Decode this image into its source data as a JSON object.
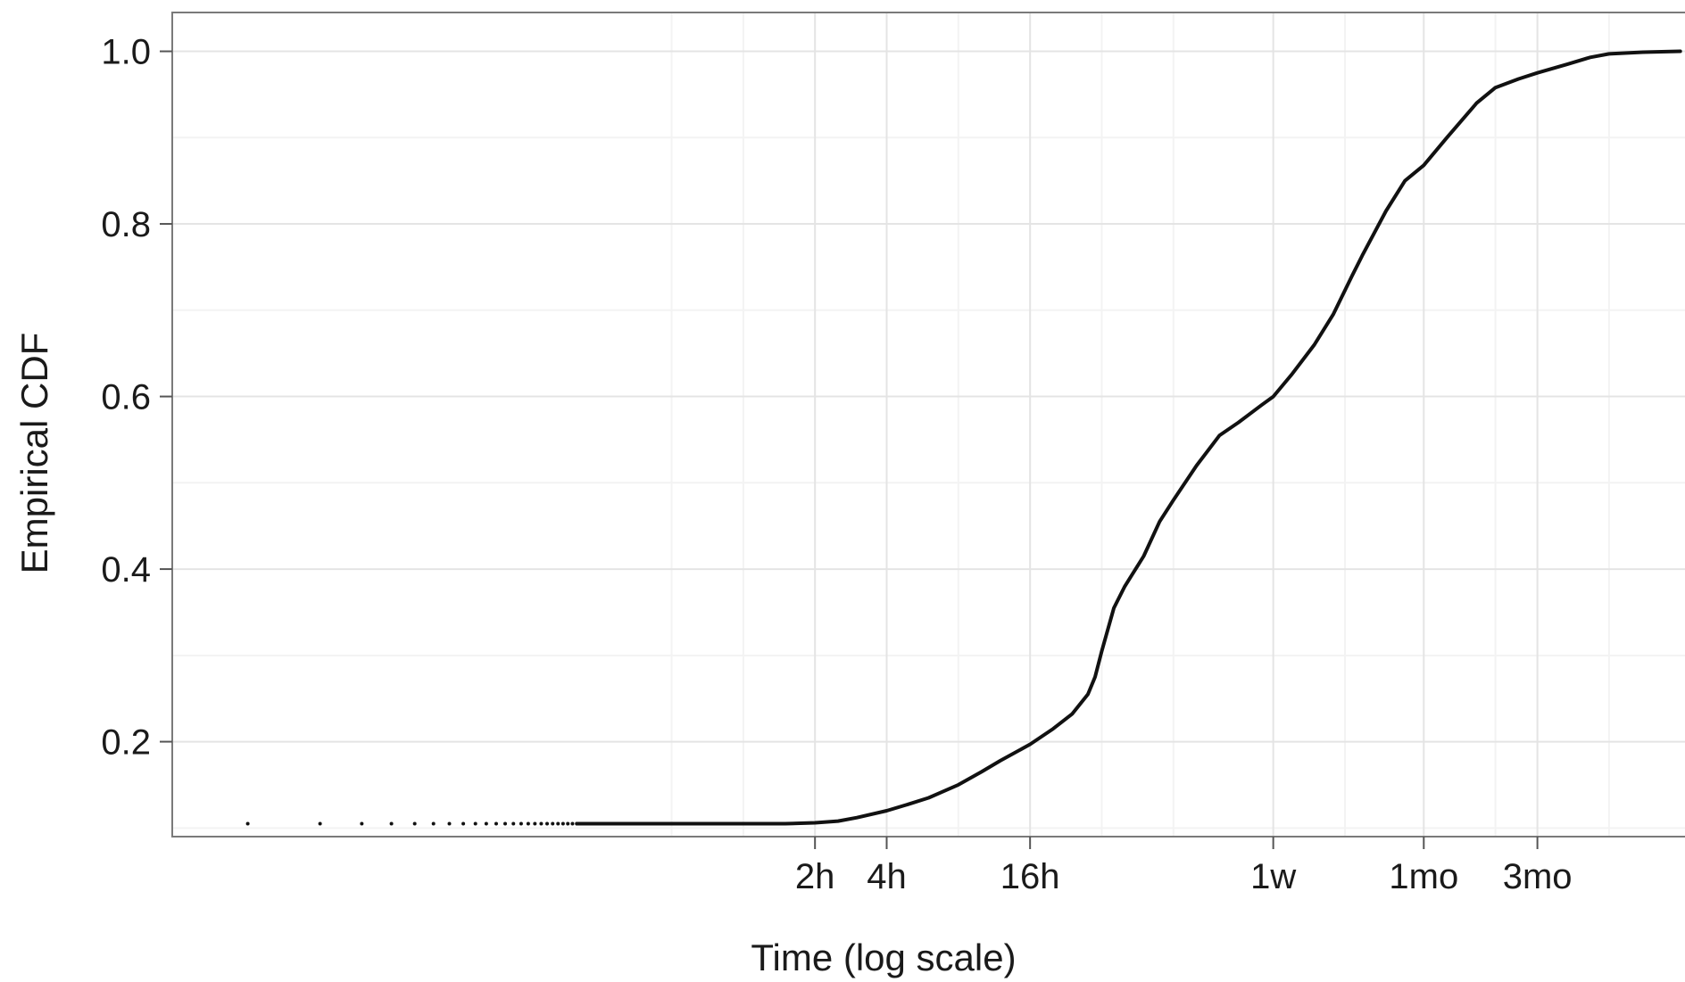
{
  "chart_data": {
    "type": "line",
    "title": "",
    "xlabel": "Time (log scale)",
    "ylabel": "Empirical CDF",
    "x_scale": "log",
    "x_unit": "hours",
    "xlim": [
      0.004,
      9000
    ],
    "ylim": [
      0.09,
      1.045
    ],
    "grid": true,
    "legend": "none",
    "line_color": "#111111",
    "x_ticks": [
      {
        "value": 2,
        "label": "2h"
      },
      {
        "value": 4,
        "label": "4h"
      },
      {
        "value": 16,
        "label": "16h"
      },
      {
        "value": 168,
        "label": "1w"
      },
      {
        "value": 720,
        "label": "1mo"
      },
      {
        "value": 2160,
        "label": "3mo"
      }
    ],
    "x_minor_gridlines": [
      0.5,
      1,
      8,
      32,
      64,
      336,
      1440,
      4320
    ],
    "y_ticks": [
      {
        "value": 0.2,
        "label": "0.2"
      },
      {
        "value": 0.4,
        "label": "0.4"
      },
      {
        "value": 0.6,
        "label": "0.6"
      },
      {
        "value": 0.8,
        "label": "0.8"
      },
      {
        "value": 1.0,
        "label": "1.0"
      }
    ],
    "y_minor_gridlines": [
      0.1,
      0.3,
      0.5,
      0.7,
      0.9
    ],
    "dots": {
      "y": 0.105,
      "x": [
        0.0083,
        0.0167,
        0.025,
        0.0333,
        0.0417,
        0.05,
        0.0583,
        0.0667,
        0.075,
        0.0833,
        0.0917,
        0.1,
        0.1083,
        0.1167,
        0.125,
        0.1333,
        0.1417,
        0.15,
        0.1583,
        0.1667,
        0.175,
        0.1833,
        0.1917,
        0.2
      ]
    },
    "series": [
      {
        "x": [
          0.2,
          0.5,
          1,
          1.5,
          2,
          2.5,
          3,
          4,
          5,
          6,
          8,
          10,
          12,
          16,
          20,
          24,
          28,
          30,
          32,
          36,
          40,
          48,
          56,
          64,
          80,
          100,
          120,
          150,
          168,
          200,
          250,
          300,
          360,
          400,
          500,
          600,
          720,
          900,
          1200,
          1440,
          1800,
          2160,
          2880,
          3600,
          4320,
          6000,
          8600
        ],
        "y": [
          0.105,
          0.105,
          0.105,
          0.105,
          0.106,
          0.108,
          0.112,
          0.12,
          0.128,
          0.135,
          0.15,
          0.165,
          0.178,
          0.197,
          0.215,
          0.232,
          0.255,
          0.275,
          0.305,
          0.355,
          0.38,
          0.415,
          0.455,
          0.48,
          0.52,
          0.555,
          0.57,
          0.59,
          0.6,
          0.625,
          0.66,
          0.695,
          0.74,
          0.765,
          0.815,
          0.85,
          0.868,
          0.9,
          0.94,
          0.958,
          0.968,
          0.975,
          0.985,
          0.993,
          0.997,
          0.999,
          1.0
        ]
      }
    ]
  }
}
